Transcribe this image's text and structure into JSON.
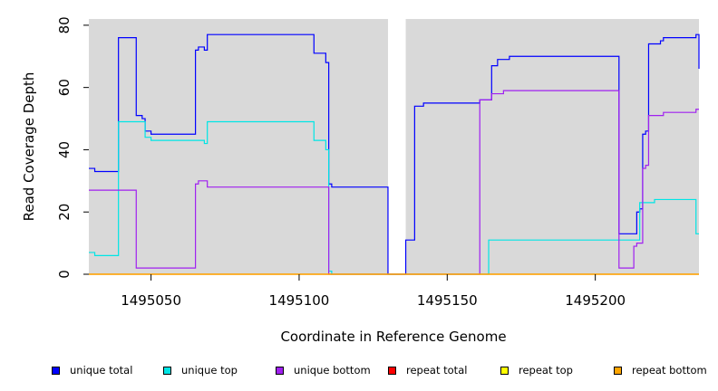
{
  "chart_data": {
    "type": "line",
    "step": true,
    "xlabel": "Coordinate in Reference Genome",
    "ylabel": "Read Coverage Depth",
    "xlim": [
      1495029,
      1495235
    ],
    "ylim": [
      0,
      82
    ],
    "xticks": [
      1495050,
      1495100,
      1495150,
      1495200
    ],
    "yticks": [
      0,
      20,
      40,
      60,
      80
    ],
    "gaps": [
      [
        1495130,
        1495136
      ]
    ],
    "background": "#d9d9d9",
    "legend_position": "bottom",
    "series": [
      {
        "name": "unique total",
        "color": "#0000ff",
        "points": [
          [
            1495029,
            34
          ],
          [
            1495031,
            33
          ],
          [
            1495039,
            76
          ],
          [
            1495045,
            51
          ],
          [
            1495047,
            50
          ],
          [
            1495048,
            46
          ],
          [
            1495050,
            45
          ],
          [
            1495065,
            72
          ],
          [
            1495066,
            73
          ],
          [
            1495068,
            72
          ],
          [
            1495069,
            77
          ],
          [
            1495105,
            71
          ],
          [
            1495109,
            68
          ],
          [
            1495110,
            29
          ],
          [
            1495111,
            28
          ],
          [
            1495130,
            0
          ],
          [
            1495136,
            11
          ],
          [
            1495139,
            54
          ],
          [
            1495142,
            55
          ],
          [
            1495161,
            56
          ],
          [
            1495165,
            67
          ],
          [
            1495167,
            69
          ],
          [
            1495171,
            70
          ],
          [
            1495208,
            13
          ],
          [
            1495214,
            20
          ],
          [
            1495215,
            21
          ],
          [
            1495216,
            45
          ],
          [
            1495217,
            46
          ],
          [
            1495218,
            74
          ],
          [
            1495222,
            75
          ],
          [
            1495223,
            76
          ],
          [
            1495234,
            77
          ],
          [
            1495235,
            66
          ]
        ]
      },
      {
        "name": "unique top",
        "color": "#00e5e5",
        "points": [
          [
            1495029,
            7
          ],
          [
            1495031,
            6
          ],
          [
            1495039,
            49
          ],
          [
            1495048,
            44
          ],
          [
            1495050,
            43
          ],
          [
            1495068,
            42
          ],
          [
            1495069,
            49
          ],
          [
            1495105,
            43
          ],
          [
            1495109,
            40
          ],
          [
            1495110,
            1
          ],
          [
            1495111,
            0
          ],
          [
            1495164,
            11
          ],
          [
            1495215,
            23
          ],
          [
            1495220,
            24
          ],
          [
            1495234,
            13
          ]
        ]
      },
      {
        "name": "unique bottom",
        "color": "#a020f0",
        "points": [
          [
            1495029,
            27
          ],
          [
            1495045,
            2
          ],
          [
            1495065,
            29
          ],
          [
            1495066,
            30
          ],
          [
            1495069,
            28
          ],
          [
            1495110,
            0
          ],
          [
            1495161,
            56
          ],
          [
            1495165,
            58
          ],
          [
            1495169,
            59
          ],
          [
            1495208,
            2
          ],
          [
            1495213,
            9
          ],
          [
            1495214,
            10
          ],
          [
            1495216,
            34
          ],
          [
            1495217,
            35
          ],
          [
            1495218,
            51
          ],
          [
            1495223,
            52
          ],
          [
            1495234,
            53
          ]
        ]
      },
      {
        "name": "repeat total",
        "color": "#ff0000",
        "points": [
          [
            1495029,
            0
          ],
          [
            1495235,
            0
          ]
        ]
      },
      {
        "name": "repeat top",
        "color": "#ffff00",
        "points": [
          [
            1495029,
            0
          ],
          [
            1495235,
            0
          ]
        ]
      },
      {
        "name": "repeat bottom",
        "color": "#ffa500",
        "points": [
          [
            1495029,
            0
          ],
          [
            1495235,
            0
          ]
        ]
      }
    ]
  }
}
